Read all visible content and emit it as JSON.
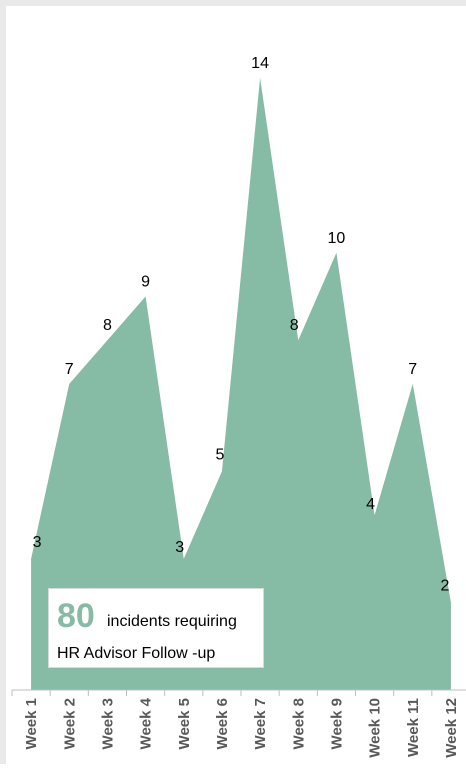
{
  "chart_data": {
    "type": "area",
    "title": "",
    "xlabel": "",
    "ylabel": "",
    "categories": [
      "Week 1",
      "Week 2",
      "Week 3",
      "Week 4",
      "Week 5",
      "Week 6",
      "Week 7",
      "Week 8",
      "Week 9",
      "Week 10",
      "Week 11",
      "Week 12"
    ],
    "series": [
      {
        "values": [
          3,
          7,
          8,
          9,
          3,
          5,
          14,
          8,
          10,
          4,
          7,
          2
        ],
        "color": "#86bba6"
      }
    ],
    "ylim": [
      0,
      14.5
    ],
    "grid": false,
    "legend": "none",
    "data_labels": true
  },
  "callout": {
    "number": "80",
    "line1": "incidents requiring",
    "line2": "HR Advisor Follow -up",
    "number_color": "#86bba6"
  }
}
